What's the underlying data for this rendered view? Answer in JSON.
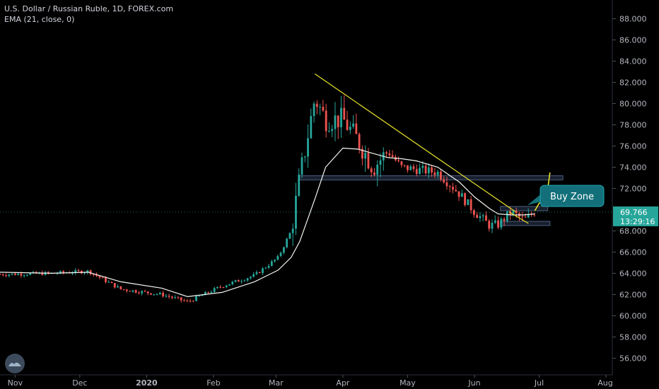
{
  "legend": {
    "symbol_line": "U.S. Dollar / Russian Ruble, 1D, FOREX.com",
    "indicator_line": "EMA (21, close, 0)"
  },
  "price_axis": {
    "ticks": [
      "88.000",
      "86.000",
      "84.000",
      "82.000",
      "80.000",
      "78.000",
      "76.000",
      "74.000",
      "72.000",
      "68.000",
      "66.000",
      "64.000",
      "62.000",
      "60.000",
      "58.000",
      "56.000"
    ]
  },
  "time_axis": {
    "labels": [
      "Nov",
      "Dec",
      "2020",
      "Feb",
      "Mar",
      "Apr",
      "May",
      "Jun",
      "Jul",
      "Aug"
    ]
  },
  "last_price": {
    "value": "69.766",
    "countdown": "13:29:16",
    "color": "#26a69a"
  },
  "annotation": {
    "label": "Buy Zone",
    "color": "#13707a"
  },
  "colors": {
    "up": "#26a69a",
    "down": "#ef5350",
    "ema": "#f5f5f0",
    "trendline": "#e7e22a",
    "zone": "#2d3b52"
  },
  "chart_data": {
    "type": "candlestick",
    "title": "U.S. Dollar / Russian Ruble, 1D, FOREX.com",
    "ylim": [
      54.8,
      89.2
    ],
    "grid": false,
    "x_labels": [
      "Nov",
      "Dec",
      "2020",
      "Feb",
      "Mar",
      "Apr",
      "May",
      "Jun",
      "Jul",
      "Aug"
    ],
    "price_path": [
      [
        "2019-10-25",
        63.9
      ],
      [
        "2019-11-18",
        64.0
      ],
      [
        "2019-12-05",
        64.2
      ],
      [
        "2019-12-20",
        62.5
      ],
      [
        "2020-01-08",
        62.0
      ],
      [
        "2020-01-20",
        61.3
      ],
      [
        "2020-02-05",
        62.8
      ],
      [
        "2020-02-20",
        63.8
      ],
      [
        "2020-03-02",
        65.5
      ],
      [
        "2020-03-08",
        68.0
      ],
      [
        "2020-03-12",
        73.0
      ],
      [
        "2020-03-19",
        80.5
      ],
      [
        "2020-03-24",
        78.5
      ],
      [
        "2020-04-01",
        78.5
      ],
      [
        "2020-04-08",
        76.5
      ],
      [
        "2020-04-15",
        74.0
      ],
      [
        "2020-04-22",
        75.5
      ],
      [
        "2020-04-28",
        74.0
      ],
      [
        "2020-05-05",
        73.8
      ],
      [
        "2020-05-15",
        73.5
      ],
      [
        "2020-05-25",
        71.5
      ],
      [
        "2020-06-01",
        69.8
      ],
      [
        "2020-06-08",
        68.5
      ],
      [
        "2020-06-12",
        68.6
      ],
      [
        "2020-06-18",
        69.8
      ],
      [
        "2020-06-24",
        69.0
      ],
      [
        "2020-06-29",
        69.8
      ]
    ],
    "series": [
      {
        "name": "EMA (21, close, 0)",
        "points": [
          [
            "2019-10-25",
            64.1
          ],
          [
            "2019-11-18",
            64.0
          ],
          [
            "2019-12-05",
            64.1
          ],
          [
            "2019-12-20",
            63.2
          ],
          [
            "2020-01-08",
            62.6
          ],
          [
            "2020-01-20",
            61.8
          ],
          [
            "2020-02-05",
            62.2
          ],
          [
            "2020-02-20",
            63.2
          ],
          [
            "2020-03-02",
            64.3
          ],
          [
            "2020-03-08",
            65.5
          ],
          [
            "2020-03-12",
            67.0
          ],
          [
            "2020-03-19",
            71.0
          ],
          [
            "2020-03-24",
            74.0
          ],
          [
            "2020-04-01",
            75.8
          ],
          [
            "2020-04-08",
            75.7
          ],
          [
            "2020-04-15",
            75.3
          ],
          [
            "2020-04-22",
            74.9
          ],
          [
            "2020-04-28",
            74.8
          ],
          [
            "2020-05-05",
            74.6
          ],
          [
            "2020-05-15",
            74.0
          ],
          [
            "2020-05-25",
            72.6
          ],
          [
            "2020-06-01",
            71.2
          ],
          [
            "2020-06-08",
            70.1
          ],
          [
            "2020-06-12",
            69.6
          ],
          [
            "2020-06-18",
            69.5
          ],
          [
            "2020-06-24",
            69.5
          ],
          [
            "2020-06-29",
            69.6
          ]
        ]
      }
    ],
    "drawings": {
      "trendline": [
        [
          "2020-03-19",
          82.8
        ],
        [
          "2020-06-20",
          69.8
        ]
      ],
      "short_trendline": [
        [
          "2020-06-17",
          69.8
        ],
        [
          "2020-06-26",
          68.7
        ]
      ],
      "zones": [
        {
          "from": "2020-03-12",
          "to": "2020-07-12",
          "price": [
            72.8,
            73.2
          ]
        },
        {
          "from": "2020-06-13",
          "to": "2020-07-05",
          "price": [
            69.9,
            70.3
          ]
        },
        {
          "from": "2020-06-13",
          "to": "2020-07-06",
          "price": [
            68.5,
            68.9
          ]
        }
      ],
      "projection": [
        [
          "2020-06-29",
          69.9
        ],
        [
          "2020-07-01",
          70.6
        ],
        [
          "2020-07-03",
          70.8
        ],
        [
          "2020-07-05",
          72.0
        ],
        [
          "2020-07-06",
          73.5
        ]
      ]
    }
  }
}
